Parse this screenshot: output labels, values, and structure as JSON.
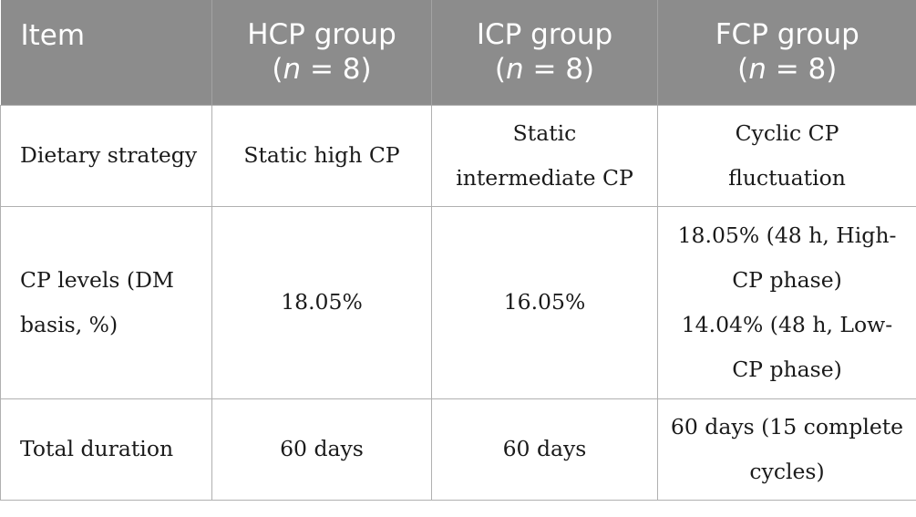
{
  "table": {
    "headers": [
      {
        "line1": "Item",
        "line2": ""
      },
      {
        "line1": "HCP group",
        "line2_pre": "(",
        "line2_n": "n",
        "line2_post": " = 8)"
      },
      {
        "line1": "ICP group",
        "line2_pre": "(",
        "line2_n": "n",
        "line2_post": " = 8)"
      },
      {
        "line1": "FCP group",
        "line2_pre": "(",
        "line2_n": "n",
        "line2_post": " = 8)"
      }
    ],
    "rows": [
      {
        "item": [
          "Dietary strategy"
        ],
        "hcp": [
          "Static high CP"
        ],
        "icp": [
          "Static",
          "intermediate CP"
        ],
        "fcp": [
          "Cyclic CP",
          "fluctuation"
        ]
      },
      {
        "item": [
          "CP levels (DM",
          "basis, %)"
        ],
        "hcp": [
          "18.05%"
        ],
        "icp": [
          "16.05%"
        ],
        "fcp": [
          "18.05% (48 h, High-",
          "CP phase)",
          "14.04% (48 h, Low-",
          "CP phase)"
        ]
      },
      {
        "item": [
          "Total duration"
        ],
        "hcp": [
          "60 days"
        ],
        "icp": [
          "60 days"
        ],
        "fcp": [
          "60 days (15 complete",
          "cycles)"
        ]
      }
    ]
  },
  "colors": {
    "header_bg": "#8c8c8c",
    "header_text": "#ffffff",
    "grid": "#b0b0b0"
  }
}
